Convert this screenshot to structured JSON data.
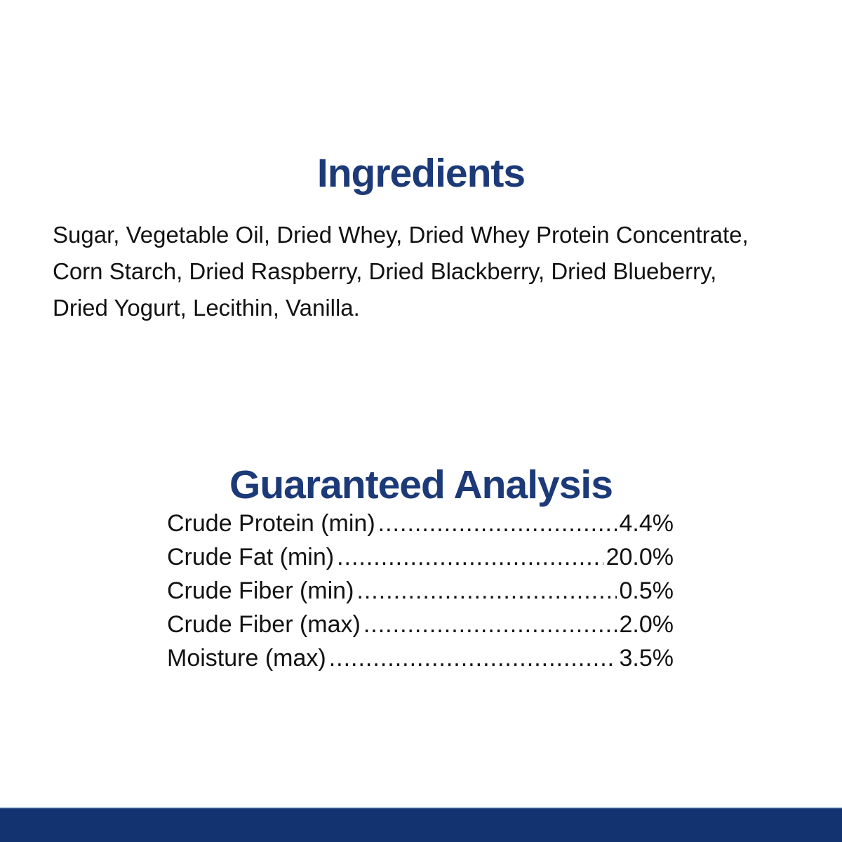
{
  "page": {
    "background": "#ffffff",
    "title_color": "#1d3a78",
    "text_color": "#121212",
    "footer_bar_color": "#123370"
  },
  "ingredients": {
    "title": "Ingredients",
    "text": "Sugar, Vegetable Oil, Dried Whey, Dried Whey Protein Concentrate, Corn Starch, Dried Raspberry, Dried Blackberry, Dried Blueberry, Dried Yogurt, Lecithin, Vanilla.",
    "text_lines": [
      "Sugar, Vegetable Oil, Dried Whey, Dried Whey Protein Concentrate,",
      "Corn Starch, Dried Raspberry, Dried Blackberry, Dried Blueberry,",
      "Dried Yogurt, Lecithin, Vanilla."
    ]
  },
  "guaranteed_analysis": {
    "title": "Guaranteed Analysis",
    "rows": [
      {
        "label": "Crude Protein (min)",
        "value": "4.4%"
      },
      {
        "label": "Crude Fat (min)",
        "value": "20.0%"
      },
      {
        "label": "Crude Fiber (min)",
        "value": "0.5%"
      },
      {
        "label": "Crude Fiber (max)",
        "value": "2.0%"
      },
      {
        "label": "Moisture (max)",
        "value": "3.5%"
      }
    ]
  }
}
